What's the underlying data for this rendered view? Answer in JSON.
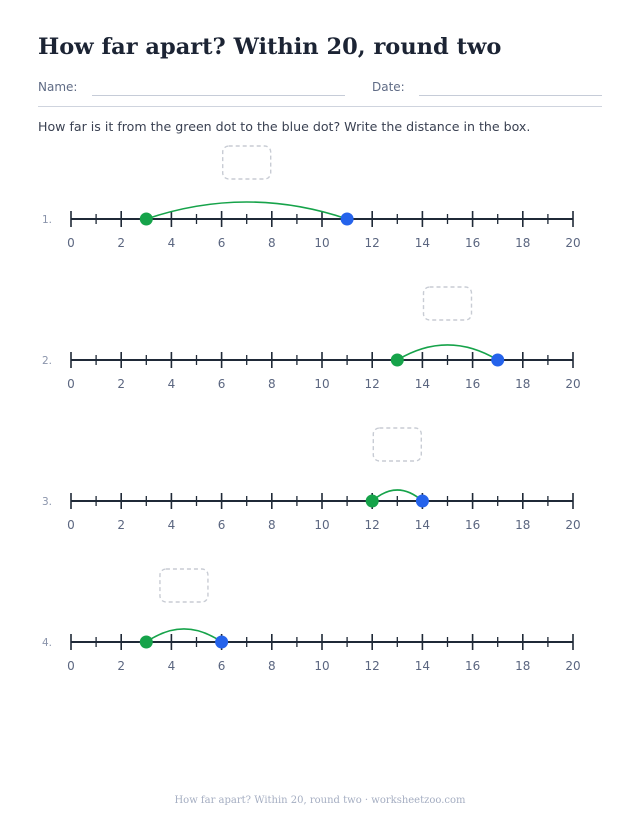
{
  "header": {
    "title": "How far apart? Within 20, round two",
    "name_label": "Name:",
    "date_label": "Date:"
  },
  "instructions": "How far is it from the green dot to the blue dot? Write the distance in the box.",
  "number_line": {
    "min": 0,
    "max": 20,
    "labeled_step": 2
  },
  "colors": {
    "start_dot": "#16a34a",
    "end_dot": "#2563eb",
    "arc": "#16a34a",
    "line": "#1f2937",
    "answer_box": "#c8ccd4"
  },
  "problems": [
    {
      "label": "1.",
      "start": 3,
      "end": 11
    },
    {
      "label": "2.",
      "start": 13,
      "end": 17
    },
    {
      "label": "3.",
      "start": 12,
      "end": 14
    },
    {
      "label": "4.",
      "start": 3,
      "end": 6
    }
  ],
  "footer": "How far apart? Within 20, round two · worksheetzoo.com"
}
